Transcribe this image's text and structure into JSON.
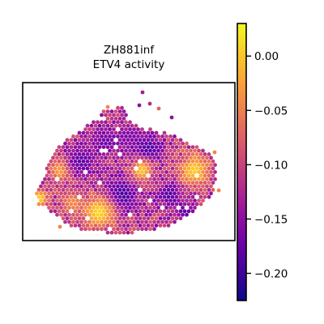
{
  "chart_data": {
    "type": "heatmap",
    "title": "ZH881inf\nETV4 activity",
    "colorbar": {
      "range": [
        -0.225,
        0.03
      ],
      "ticks": [
        0.0,
        -0.05,
        -0.1,
        -0.15,
        -0.2
      ],
      "tick_labels": [
        "0.00",
        "−0.05",
        "−0.10",
        "−0.15",
        "−0.20"
      ],
      "colormap": "plasma",
      "placement": "right"
    },
    "xlabel": "",
    "ylabel": "",
    "grid": false
  }
}
